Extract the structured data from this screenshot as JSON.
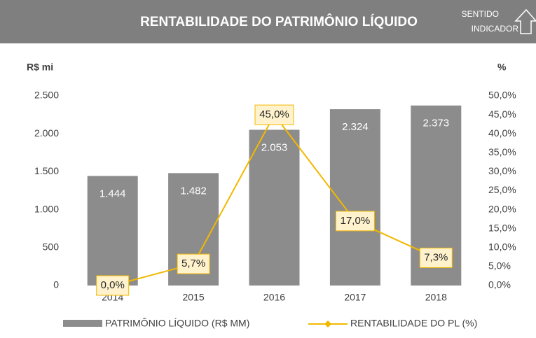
{
  "chart_data": {
    "type": "bar",
    "title": "RENTABILIDADE DO PATRIMÔNIO LÍQUIDO",
    "indicator_label": [
      "SENTIDO",
      "INDICADOR"
    ],
    "y_label": "R$ mi",
    "y2_label": "%",
    "categories": [
      "2014",
      "2015",
      "2016",
      "2017",
      "2018"
    ],
    "series": [
      {
        "name": "PATRIMÔNIO LÍQUIDO (R$ MM)",
        "type": "bar",
        "color": "#8c8c8c",
        "values": [
          1444,
          1482,
          2053,
          2324,
          2373
        ],
        "value_labels": [
          "1.444",
          "1.482",
          "2.053",
          "2.324",
          "2.373"
        ]
      },
      {
        "name": "RENTABILIDADE DO PL (%)",
        "type": "line",
        "axis": "y2",
        "color": "#f2b800",
        "values": [
          0,
          5.7,
          45,
          17,
          7.3
        ],
        "value_labels": [
          "0,0%",
          "5,7%",
          "45,0%",
          "17,0%",
          "7,3%"
        ]
      }
    ],
    "ylim": [
      0,
      2500
    ],
    "yticks": [
      {
        "value": 0,
        "label": "0"
      },
      {
        "value": 500,
        "label": "500"
      },
      {
        "value": 1000,
        "label": "1.000"
      },
      {
        "value": 1500,
        "label": "1.500"
      },
      {
        "value": 2000,
        "label": "2.000"
      },
      {
        "value": 2500,
        "label": "2.500"
      }
    ],
    "y2lim": [
      0,
      50
    ],
    "y2ticks": [
      {
        "value": 0,
        "label": "0,0%"
      },
      {
        "value": 5,
        "label": "5,0%"
      },
      {
        "value": 10,
        "label": "10,0%"
      },
      {
        "value": 15,
        "label": "15,0%"
      },
      {
        "value": 20,
        "label": "20,0%"
      },
      {
        "value": 25,
        "label": "25,0%"
      },
      {
        "value": 30,
        "label": "30,0%"
      },
      {
        "value": 35,
        "label": "35,0%"
      },
      {
        "value": 40,
        "label": "40,0%"
      },
      {
        "value": 45,
        "label": "45,0%"
      },
      {
        "value": 50,
        "label": "50,0%"
      }
    ]
  }
}
